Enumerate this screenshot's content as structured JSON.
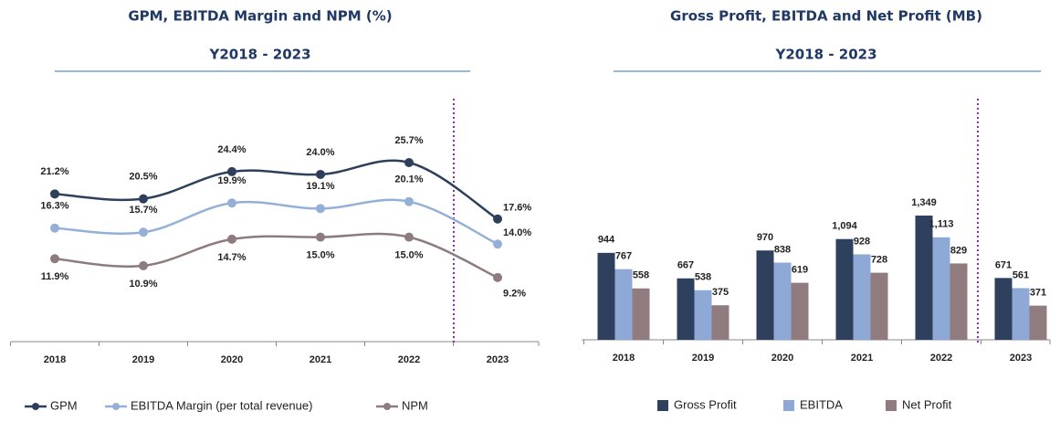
{
  "chart_data": [
    {
      "type": "line",
      "title": "GPM, EBITDA Margin and NPM (%)",
      "subtitle": "Y2018 - 2023",
      "categories": [
        "2018",
        "2019",
        "2020",
        "2021",
        "2022",
        "2023"
      ],
      "series": [
        {
          "name": "GPM",
          "color": "#2e3f5c",
          "values": [
            21.2,
            20.5,
            24.4,
            24.0,
            25.7,
            17.6
          ],
          "value_labels": [
            "21.2%",
            "20.5%",
            "24.4%",
            "24.0%",
            "25.7%",
            "17.6%"
          ]
        },
        {
          "name": "EBITDA Margin (per total revenue)",
          "color": "#95b0d6",
          "values": [
            16.3,
            15.7,
            19.9,
            19.1,
            20.1,
            14.0
          ],
          "value_labels": [
            "16.3%",
            "15.7%",
            "19.9%",
            "19.1%",
            "20.1%",
            "14.0%"
          ]
        },
        {
          "name": "NPM",
          "color": "#8e7b7e",
          "values": [
            11.9,
            10.9,
            14.7,
            15.0,
            15.0,
            9.2
          ],
          "value_labels": [
            "11.9%",
            "10.9%",
            "14.7%",
            "15.0%",
            "15.0%",
            "9.2%"
          ]
        }
      ]
    },
    {
      "type": "bar",
      "title": "Gross Profit, EBITDA and Net Profit (MB)",
      "subtitle": "Y2018 - 2023",
      "categories": [
        "2018",
        "2019",
        "2020",
        "2021",
        "2022",
        "2023"
      ],
      "series": [
        {
          "name": "Gross Profit",
          "color": "#2f405e",
          "values": [
            944,
            667,
            970,
            1094,
            1349,
            671
          ],
          "value_labels": [
            "944",
            "667",
            "970",
            "1,094",
            "1,349",
            "671"
          ]
        },
        {
          "name": "EBITDA",
          "color": "#8fa9d6",
          "values": [
            767,
            538,
            838,
            928,
            1113,
            561
          ],
          "value_labels": [
            "767",
            "538",
            "838",
            "928",
            "1,113",
            "561"
          ]
        },
        {
          "name": "Net Profit",
          "color": "#907b7f",
          "values": [
            558,
            375,
            619,
            728,
            829,
            371
          ]
        }
      ]
    }
  ]
}
